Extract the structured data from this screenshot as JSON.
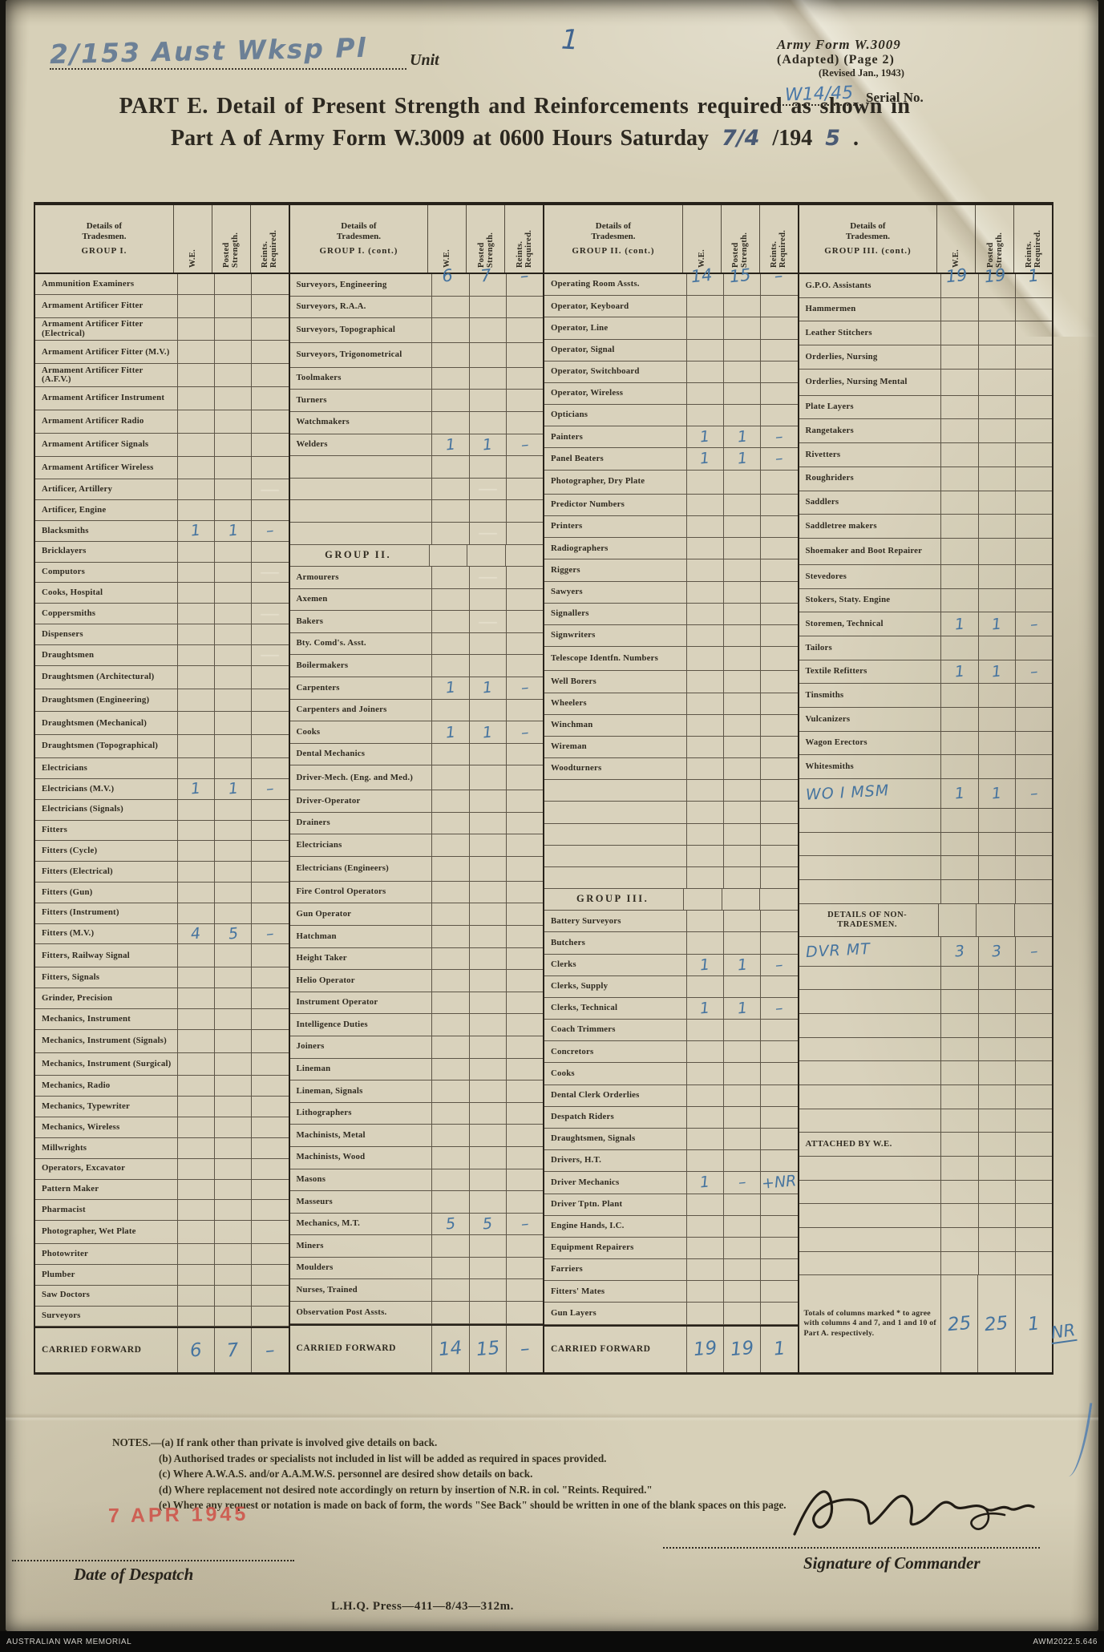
{
  "doc": {
    "unit_hand": "2/153 Aust Wksp Pl",
    "unit_label": "Unit",
    "stray_mark": "1",
    "form_line1": "Army Form W.3009",
    "form_line2": "(Adapted)  (Page 2)",
    "form_line3": "(Revised Jan., 1943)",
    "serial_hand": "W14/45",
    "serial_label": "Serial No.",
    "title1": "PART E.  Detail of Present Strength and Reinforcements required as shown in",
    "title2_pre": "Part A of Army Form W.3009 at 0600 Hours Saturday",
    "title2_hand_date": "7/4",
    "title2_printed_year": "/194",
    "title2_hand_year": "5",
    "title2_end": ".",
    "notes": [
      "NOTES.—(a) If rank other than private is involved give details on back.",
      "(b) Authorised trades or specialists not included in list will be added as required in spaces provided.",
      "(c) Where A.W.A.S. and/or A.A.M.W.S. personnel are desired show details on back.",
      "(d) Where replacement not desired note accordingly on return by insertion of N.R. in col. \"Reints. Required.\"",
      "(e) Where any request or notation is made on back of form, the words \"See Back\" should be written in one of the blank spaces on this page."
    ],
    "stamp": "7 APR 1945",
    "despatch_label": "Date of Despatch",
    "signature_label": "Signature of Commander",
    "imprint": "L.H.Q.  Press—411—8/43—312m.",
    "archive_left": "AUSTRALIAN WAR MEMORIAL",
    "archive_right": "AWM2022.5.646"
  },
  "table": {
    "col_headers": {
      "line1": "Details of",
      "line2": "Tradesmen.",
      "we": "W.E.",
      "posted": "Posted Strength.",
      "reints": "Reints. Required."
    },
    "groups": [
      {
        "title": "GROUP I.",
        "hand": {
          "we": "",
          "ps": "",
          "rr": ""
        },
        "rows": [
          {
            "l": "Ammunition Examiners"
          },
          {
            "l": "Armament Artificer Fitter",
            "k": "2"
          },
          {
            "l": "Armament Artificer Fitter (Electrical)",
            "k": "2"
          },
          {
            "l": "Armament Artificer Fitter (M.V.)",
            "k": "2"
          },
          {
            "l": "Armament Artificer Fitter (A.F.V.)",
            "k": "2"
          },
          {
            "l": "Armament Artificer Instrument",
            "k": "2"
          },
          {
            "l": "Armament Artificer Radio",
            "k": "2"
          },
          {
            "l": "Armament Artificer Signals",
            "k": "2"
          },
          {
            "l": "Armament Artificer Wireless",
            "k": "2"
          },
          {
            "l": "Artificer, Artillery",
            "rr": "~"
          },
          {
            "l": "Artificer, Engine"
          },
          {
            "l": "Blacksmiths",
            "we": "1",
            "ps": "1",
            "rr": "–"
          },
          {
            "l": "Bricklayers"
          },
          {
            "l": "Computors",
            "rr": "~"
          },
          {
            "l": "Cooks, Hospital"
          },
          {
            "l": "Coppersmiths",
            "rr": "~"
          },
          {
            "l": "Dispensers"
          },
          {
            "l": "Draughtsmen",
            "rr": "~"
          },
          {
            "l": "Draughtsmen (Architectural)",
            "k": "2"
          },
          {
            "l": "Draughtsmen (Engineering)",
            "k": "2"
          },
          {
            "l": "Draughtsmen (Mechanical)",
            "k": "2"
          },
          {
            "l": "Draughtsmen (Topographical)",
            "k": "2"
          },
          {
            "l": "Electricians"
          },
          {
            "l": "Electricians (M.V.)",
            "we": "1",
            "ps": "1",
            "rr": "–"
          },
          {
            "l": "Electricians (Signals)"
          },
          {
            "l": "Fitters"
          },
          {
            "l": "Fitters (Cycle)"
          },
          {
            "l": "Fitters (Electrical)"
          },
          {
            "l": "Fitters (Gun)"
          },
          {
            "l": "Fitters (Instrument)"
          },
          {
            "l": "Fitters (M.V.)",
            "we": "4",
            "ps": "5",
            "rr": "–"
          },
          {
            "l": "Fitters, Railway Signal",
            "k": "2"
          },
          {
            "l": "Fitters, Signals"
          },
          {
            "l": "Grinder, Precision"
          },
          {
            "l": "Mechanics, Instrument"
          },
          {
            "l": "Mechanics, Instrument (Signals)",
            "k": "2"
          },
          {
            "l": "Mechanics, Instrument (Surgical)",
            "k": "2"
          },
          {
            "l": "Mechanics, Radio"
          },
          {
            "l": "Mechanics, Typewriter"
          },
          {
            "l": "Mechanics, Wireless"
          },
          {
            "l": "Millwrights"
          },
          {
            "l": "Operators, Excavator"
          },
          {
            "l": "Pattern Maker"
          },
          {
            "l": "Pharmacist"
          },
          {
            "l": "Photographer, Wet Plate",
            "k": "2"
          },
          {
            "l": "Photowriter"
          },
          {
            "l": "Plumber"
          },
          {
            "l": "Saw Doctors"
          },
          {
            "l": "Surveyors"
          },
          {
            "l": "CARRIED FORWARD",
            "k": "cf",
            "we": "6",
            "ps": "7",
            "rr": "–"
          }
        ]
      },
      {
        "title": "GROUP I. (cont.)",
        "hand": {
          "we": "6",
          "ps": "7",
          "rr": "–"
        },
        "rows": [
          {
            "l": "Surveyors, Engineering"
          },
          {
            "l": "Surveyors, R.A.A."
          },
          {
            "l": "Surveyors, Topographical",
            "k": "2"
          },
          {
            "l": "Surveyors, Trigonometrical",
            "k": "2"
          },
          {
            "l": "Toolmakers"
          },
          {
            "l": "Turners"
          },
          {
            "l": "Watchmakers"
          },
          {
            "l": "Welders",
            "we": "1",
            "ps": "1",
            "rr": "–"
          },
          {
            "k": "b"
          },
          {
            "k": "b",
            "ps": "~"
          },
          {
            "k": "b"
          },
          {
            "k": "b",
            "ps": "~"
          },
          {
            "l": "GROUP II.",
            "k": "g"
          },
          {
            "l": "Armourers",
            "ps": "~"
          },
          {
            "l": "Axemen"
          },
          {
            "l": "Bakers",
            "ps": "~"
          },
          {
            "l": "Bty. Comd's. Asst."
          },
          {
            "l": "Boilermakers"
          },
          {
            "l": "Carpenters",
            "we": "1",
            "ps": "1",
            "rr": "–"
          },
          {
            "l": "Carpenters and Joiners"
          },
          {
            "l": "Cooks",
            "we": "1",
            "ps": "1",
            "rr": "–"
          },
          {
            "l": "Dental Mechanics"
          },
          {
            "l": "Driver-Mech. (Eng. and Med.)",
            "k": "2"
          },
          {
            "l": "Driver-Operator"
          },
          {
            "l": "Drainers"
          },
          {
            "l": "Electricians"
          },
          {
            "l": "Electricians (Engineers)",
            "k": "2"
          },
          {
            "l": "Fire Control Operators"
          },
          {
            "l": "Gun Operator"
          },
          {
            "l": "Hatchman"
          },
          {
            "l": "Height Taker"
          },
          {
            "l": "Helio Operator"
          },
          {
            "l": "Instrument Operator"
          },
          {
            "l": "Intelligence Duties"
          },
          {
            "l": "Joiners"
          },
          {
            "l": "Lineman"
          },
          {
            "l": "Lineman, Signals"
          },
          {
            "l": "Lithographers"
          },
          {
            "l": "Machinists, Metal"
          },
          {
            "l": "Machinists, Wood"
          },
          {
            "l": "Masons"
          },
          {
            "l": "Masseurs"
          },
          {
            "l": "Mechanics, M.T.",
            "we": "5",
            "ps": "5",
            "rr": "–"
          },
          {
            "l": "Miners"
          },
          {
            "l": "Moulders"
          },
          {
            "l": "Nurses, Trained"
          },
          {
            "l": "Observation Post Assts."
          },
          {
            "l": "CARRIED FORWARD",
            "k": "cf",
            "we": "14",
            "ps": "15",
            "rr": "–"
          }
        ]
      },
      {
        "title": "GROUP II. (cont.)",
        "hand": {
          "we": "14",
          "ps": "15",
          "rr": "–"
        },
        "rows": [
          {
            "l": "Operating Room Assts."
          },
          {
            "l": "Operator, Keyboard"
          },
          {
            "l": "Operator, Line"
          },
          {
            "l": "Operator, Signal"
          },
          {
            "l": "Operator, Switchboard"
          },
          {
            "l": "Operator, Wireless"
          },
          {
            "l": "Opticians"
          },
          {
            "l": "Painters",
            "we": "1",
            "ps": "1",
            "rr": "–"
          },
          {
            "l": "Panel Beaters",
            "we": "1",
            "ps": "1",
            "rr": "–"
          },
          {
            "l": "Photographer, Dry Plate",
            "k": "2"
          },
          {
            "l": "Predictor Numbers"
          },
          {
            "l": "Printers"
          },
          {
            "l": "Radiographers"
          },
          {
            "l": "Riggers"
          },
          {
            "l": "Sawyers"
          },
          {
            "l": "Signallers"
          },
          {
            "l": "Signwriters"
          },
          {
            "l": "Telescope Identfn. Numbers",
            "k": "2"
          },
          {
            "l": "Well Borers"
          },
          {
            "l": "Wheelers"
          },
          {
            "l": "Winchman"
          },
          {
            "l": "Wireman"
          },
          {
            "l": "Woodturners"
          },
          {
            "k": "b"
          },
          {
            "k": "b"
          },
          {
            "k": "b"
          },
          {
            "k": "b"
          },
          {
            "k": "b"
          },
          {
            "l": "GROUP III.",
            "k": "g"
          },
          {
            "l": "Battery Surveyors"
          },
          {
            "l": "Butchers"
          },
          {
            "l": "Clerks",
            "we": "1",
            "ps": "1",
            "rr": "–"
          },
          {
            "l": "Clerks, Supply"
          },
          {
            "l": "Clerks, Technical",
            "we": "1",
            "ps": "1",
            "rr": "–"
          },
          {
            "l": "Coach Trimmers"
          },
          {
            "l": "Concretors"
          },
          {
            "l": "Cooks"
          },
          {
            "l": "Dental Clerk Orderlies"
          },
          {
            "l": "Despatch Riders"
          },
          {
            "l": "Draughtsmen, Signals"
          },
          {
            "l": "Drivers, H.T."
          },
          {
            "l": "Driver Mechanics",
            "we": "1",
            "ps": "–",
            "rr": "+NR"
          },
          {
            "l": "Driver Tptn. Plant"
          },
          {
            "l": "Engine Hands, I.C."
          },
          {
            "l": "Equipment Repairers"
          },
          {
            "l": "Farriers"
          },
          {
            "l": "Fitters' Mates"
          },
          {
            "l": "Gun Layers"
          },
          {
            "l": "CARRIED FORWARD",
            "k": "cf",
            "we": "19",
            "ps": "19",
            "rr": "1"
          }
        ]
      },
      {
        "title": "GROUP III. (cont.)",
        "hand": {
          "we": "19",
          "ps": "19",
          "rr": "1"
        },
        "rows": [
          {
            "l": "G.P.O. Assistants"
          },
          {
            "l": "Hammermen"
          },
          {
            "l": "Leather Stitchers"
          },
          {
            "l": "Orderlies, Nursing"
          },
          {
            "l": "Orderlies, Nursing Mental",
            "k": "2"
          },
          {
            "l": "Plate Layers"
          },
          {
            "l": "Rangetakers"
          },
          {
            "l": "Rivetters"
          },
          {
            "l": "Roughriders"
          },
          {
            "l": "Saddlers"
          },
          {
            "l": "Saddletree makers"
          },
          {
            "l": "Shoemaker and Boot Repairer",
            "k": "2"
          },
          {
            "l": "Stevedores"
          },
          {
            "l": "Stokers, Staty. Engine"
          },
          {
            "l": "Storemen, Technical",
            "we": "1",
            "ps": "1",
            "rr": "–"
          },
          {
            "l": "Tailors"
          },
          {
            "l": "Textile Refitters",
            "we": "1",
            "ps": "1",
            "rr": "–"
          },
          {
            "l": "Tinsmiths"
          },
          {
            "l": "Vulcanizers"
          },
          {
            "l": "Wagon Erectors"
          },
          {
            "l": "Whitesmiths"
          },
          {
            "l": "WO I MSM",
            "k": "h",
            "we": "1",
            "ps": "1",
            "rr": "–"
          },
          {
            "k": "b"
          },
          {
            "k": "b"
          },
          {
            "k": "b"
          },
          {
            "k": "b"
          },
          {
            "l": "DETAILS OF NON-TRADESMEN.",
            "k": "x2"
          },
          {
            "l": "DVR MT",
            "k": "h",
            "we": "3",
            "ps": "3",
            "rr": "–"
          },
          {
            "k": "b"
          },
          {
            "k": "b"
          },
          {
            "k": "b"
          },
          {
            "k": "b"
          },
          {
            "k": "b"
          },
          {
            "k": "b"
          },
          {
            "k": "b"
          },
          {
            "l": "ATTACHED BY W.E.",
            "k": "a"
          },
          {
            "k": "b"
          },
          {
            "k": "b"
          },
          {
            "k": "b"
          },
          {
            "k": "b"
          },
          {
            "k": "b"
          },
          {
            "l": "Totals of columns marked * to agree with columns 4 and 7, and 1 and 10 of Part A. respectively.",
            "k": "t",
            "we": "25",
            "ps": "25",
            "rr": "1",
            "rrx": "NR"
          }
        ]
      }
    ]
  }
}
